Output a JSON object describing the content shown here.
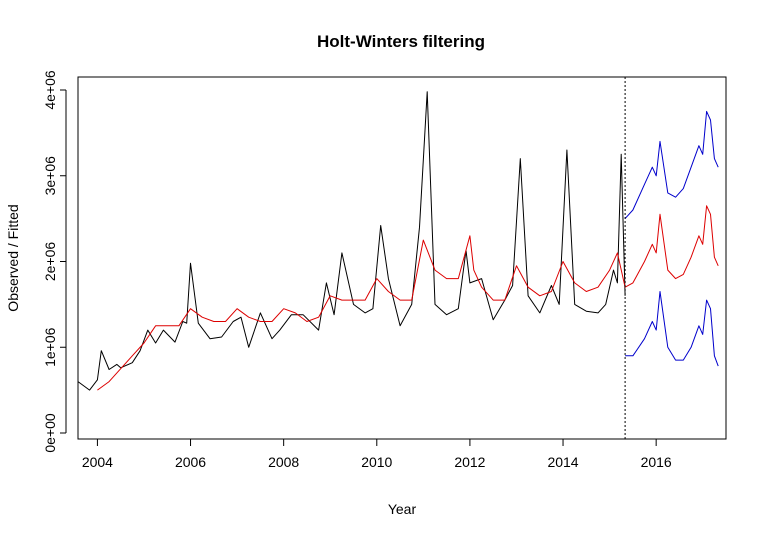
{
  "chart_data": {
    "type": "line",
    "title": "Holt-Winters filtering",
    "xlabel": "Year",
    "ylabel": "Observed / Fitted",
    "xlim": [
      2003.583,
      2017.5
    ],
    "ylim": [
      0,
      4000000
    ],
    "x_ticks": [
      2004,
      2006,
      2008,
      2010,
      2012,
      2014,
      2016
    ],
    "x_tick_labels": [
      "2004",
      "2006",
      "2008",
      "2010",
      "2012",
      "2014",
      "2016"
    ],
    "y_ticks": [
      0,
      1000000,
      2000000,
      3000000,
      4000000
    ],
    "y_tick_labels": [
      "0e+00",
      "1e+06",
      "2e+06",
      "3e+06",
      "4e+06"
    ],
    "forecast_start": 2015.333,
    "series": [
      {
        "role": "observed",
        "color": "#000000",
        "x": [
          2003.583,
          2003.833,
          2004.0,
          2004.083,
          2004.25,
          2004.417,
          2004.5,
          2004.75,
          2004.917,
          2005.083,
          2005.25,
          2005.417,
          2005.667,
          2005.833,
          2005.917,
          2006.0,
          2006.167,
          2006.417,
          2006.667,
          2006.917,
          2007.083,
          2007.25,
          2007.5,
          2007.75,
          2007.917,
          2008.167,
          2008.417,
          2008.75,
          2008.917,
          2009.083,
          2009.25,
          2009.5,
          2009.75,
          2009.917,
          2010.083,
          2010.25,
          2010.5,
          2010.75,
          2010.917,
          2011.083,
          2011.25,
          2011.5,
          2011.75,
          2011.917,
          2012.0,
          2012.25,
          2012.5,
          2012.75,
          2012.917,
          2013.083,
          2013.25,
          2013.5,
          2013.75,
          2013.917,
          2014.083,
          2014.25,
          2014.5,
          2014.75,
          2014.917,
          2015.083,
          2015.167,
          2015.25,
          2015.333
        ],
        "y": [
          600000,
          500000,
          620000,
          960000,
          740000,
          800000,
          760000,
          820000,
          960000,
          1200000,
          1050000,
          1200000,
          1060000,
          1300000,
          1280000,
          1980000,
          1280000,
          1100000,
          1120000,
          1300000,
          1350000,
          1000000,
          1400000,
          1100000,
          1200000,
          1380000,
          1380000,
          1200000,
          1750000,
          1380000,
          2100000,
          1500000,
          1400000,
          1450000,
          2420000,
          1800000,
          1250000,
          1500000,
          2400000,
          3980000,
          1500000,
          1380000,
          1450000,
          2130000,
          1750000,
          1800000,
          1320000,
          1550000,
          1720000,
          3200000,
          1600000,
          1400000,
          1720000,
          1500000,
          3300000,
          1500000,
          1420000,
          1400000,
          1500000,
          1900000,
          1750000,
          3250000,
          1600000
        ]
      },
      {
        "role": "fitted",
        "color": "#dd0000",
        "x": [
          2004.0,
          2004.25,
          2004.5,
          2004.75,
          2005.0,
          2005.25,
          2005.5,
          2005.75,
          2006.0,
          2006.25,
          2006.5,
          2006.75,
          2007.0,
          2007.25,
          2007.5,
          2007.75,
          2008.0,
          2008.25,
          2008.5,
          2008.75,
          2009.0,
          2009.25,
          2009.5,
          2009.75,
          2010.0,
          2010.25,
          2010.5,
          2010.75,
          2011.0,
          2011.25,
          2011.5,
          2011.75,
          2012.0,
          2012.083,
          2012.25,
          2012.5,
          2012.75,
          2013.0,
          2013.25,
          2013.5,
          2013.75,
          2014.0,
          2014.25,
          2014.5,
          2014.75,
          2015.0,
          2015.167,
          2015.333
        ],
        "y": [
          500000,
          600000,
          750000,
          900000,
          1050000,
          1250000,
          1250000,
          1250000,
          1450000,
          1350000,
          1300000,
          1300000,
          1450000,
          1350000,
          1300000,
          1300000,
          1450000,
          1400000,
          1300000,
          1350000,
          1600000,
          1550000,
          1550000,
          1550000,
          1800000,
          1650000,
          1550000,
          1550000,
          2250000,
          1900000,
          1800000,
          1800000,
          2300000,
          1900000,
          1700000,
          1550000,
          1550000,
          1950000,
          1700000,
          1600000,
          1650000,
          2000000,
          1750000,
          1650000,
          1700000,
          1900000,
          2100000,
          1700000
        ]
      },
      {
        "role": "forecast-upper",
        "color": "#0000cc",
        "x": [
          2015.333,
          2015.5,
          2015.75,
          2015.917,
          2016.0,
          2016.083,
          2016.25,
          2016.417,
          2016.583,
          2016.75,
          2016.917,
          2017.0,
          2017.083,
          2017.167,
          2017.25,
          2017.333
        ],
        "y": [
          2500000,
          2600000,
          2900000,
          3100000,
          3000000,
          3400000,
          2800000,
          2750000,
          2850000,
          3100000,
          3350000,
          3250000,
          3750000,
          3650000,
          3200000,
          3100000
        ]
      },
      {
        "role": "forecast-fit",
        "color": "#dd0000",
        "x": [
          2015.333,
          2015.5,
          2015.75,
          2015.917,
          2016.0,
          2016.083,
          2016.25,
          2016.417,
          2016.583,
          2016.75,
          2016.917,
          2017.0,
          2017.083,
          2017.167,
          2017.25,
          2017.333
        ],
        "y": [
          1700000,
          1750000,
          2000000,
          2200000,
          2100000,
          2550000,
          1900000,
          1800000,
          1850000,
          2050000,
          2300000,
          2200000,
          2650000,
          2550000,
          2050000,
          1950000
        ]
      },
      {
        "role": "forecast-lower",
        "color": "#0000cc",
        "x": [
          2015.333,
          2015.5,
          2015.75,
          2015.917,
          2016.0,
          2016.083,
          2016.25,
          2016.417,
          2016.583,
          2016.75,
          2016.917,
          2017.0,
          2017.083,
          2017.167,
          2017.25,
          2017.333
        ],
        "y": [
          900000,
          900000,
          1100000,
          1300000,
          1200000,
          1650000,
          1000000,
          850000,
          850000,
          1000000,
          1250000,
          1150000,
          1550000,
          1450000,
          900000,
          780000
        ]
      }
    ]
  }
}
